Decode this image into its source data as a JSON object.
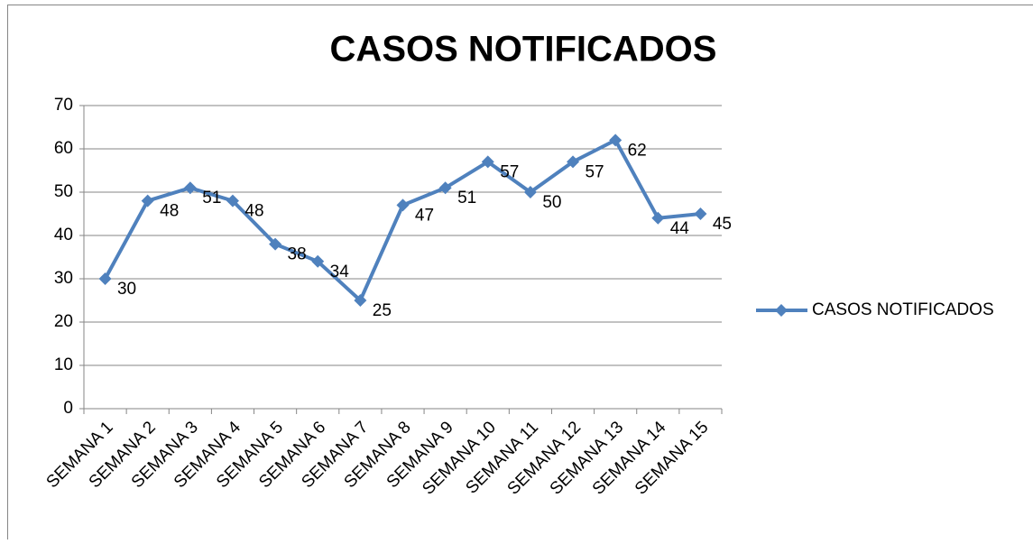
{
  "chart_data": {
    "type": "line",
    "title": "CASOS NOTIFICADOS",
    "categories": [
      "SEMANA 1",
      "SEMANA 2",
      "SEMANA 3",
      "SEMANA 4",
      "SEMANA 5",
      "SEMANA 6",
      "SEMANA 7",
      "SEMANA 8",
      "SEMANA 9",
      "SEMANA 10",
      "SEMANA 11",
      "SEMANA 12",
      "SEMANA 13",
      "SEMANA 14",
      "SEMANA 15"
    ],
    "series": [
      {
        "name": "CASOS NOTIFICADOS",
        "color": "#4f81bd",
        "values": [
          30,
          48,
          51,
          48,
          38,
          34,
          25,
          47,
          51,
          57,
          50,
          57,
          62,
          44,
          45
        ]
      }
    ],
    "ylim": [
      0,
      70
    ],
    "yticks": [
      0,
      10,
      20,
      30,
      40,
      50,
      60,
      70
    ],
    "grid": true,
    "legend": "right"
  }
}
